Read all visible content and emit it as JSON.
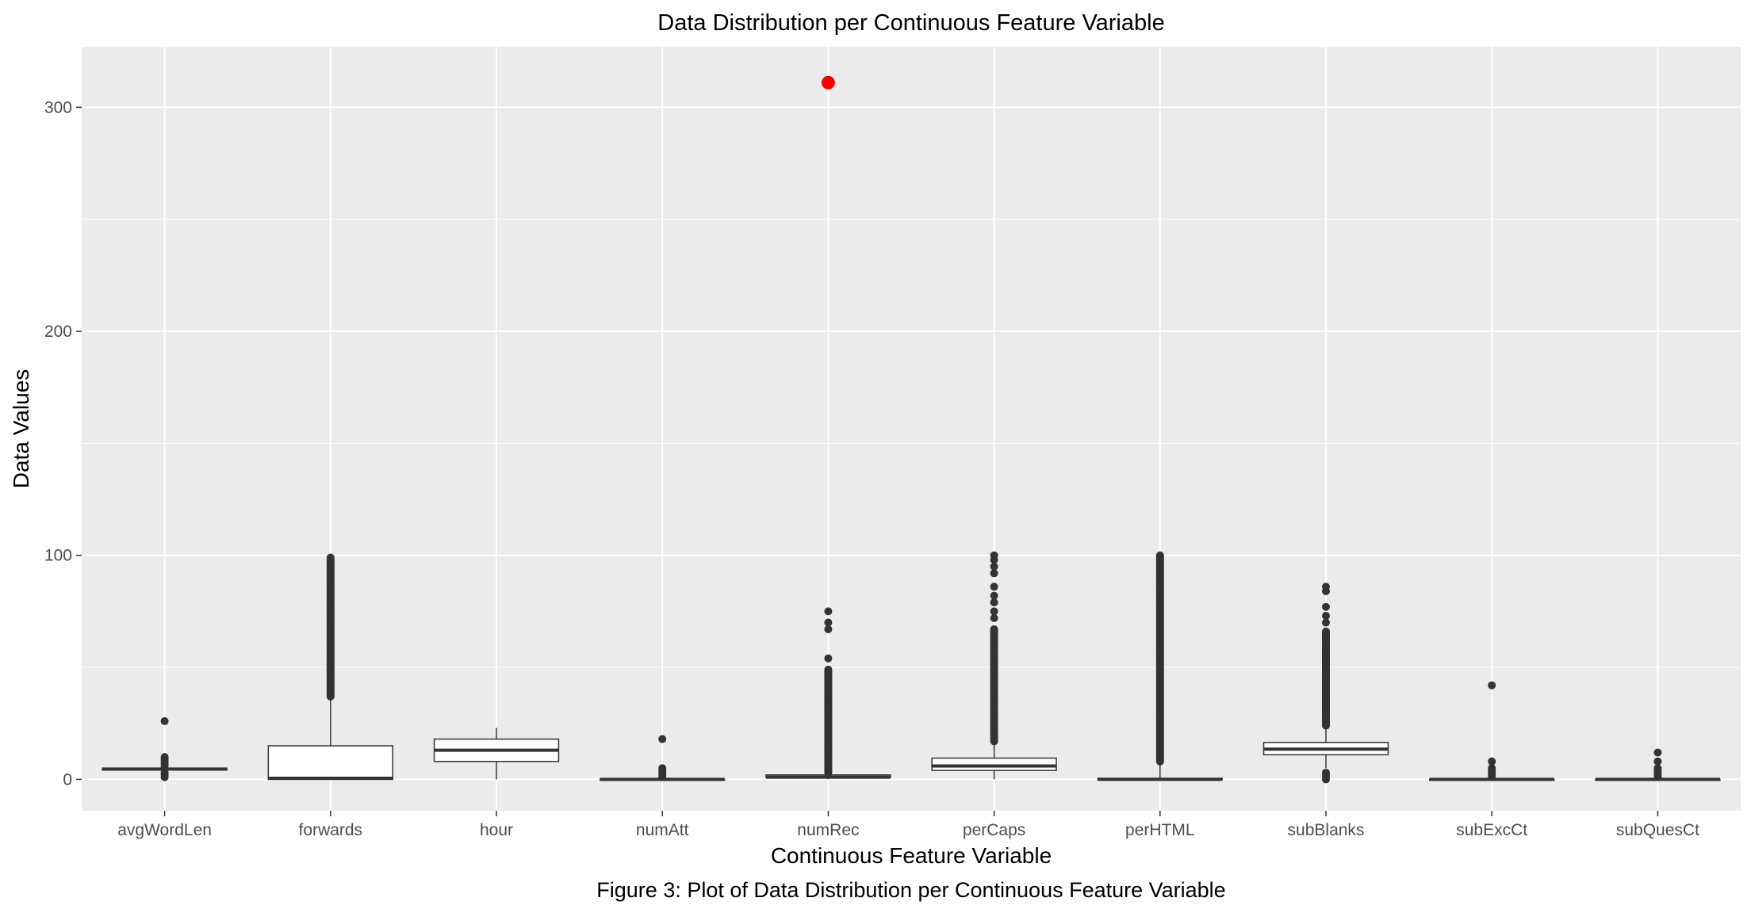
{
  "chart_data": {
    "type": "boxplot",
    "title": "Data Distribution per Continuous Feature Variable",
    "xlabel": "Continuous Feature Variable",
    "ylabel": "Data Values",
    "caption": "Figure 3: Plot of Data Distribution per Continuous Feature Variable",
    "ylim": [
      -14,
      327
    ],
    "yticks": [
      0,
      100,
      200,
      300
    ],
    "grid": true,
    "colors": {
      "panel": "#ebebeb",
      "grid_major": "#ffffff",
      "box_line": "#333333",
      "outlier": "#333333",
      "highlight": "#ff0000"
    },
    "categories": [
      "avgWordLen",
      "forwards",
      "hour",
      "numAtt",
      "numRec",
      "perCaps",
      "perHTML",
      "subBlanks",
      "subExcCt",
      "subQuesCt"
    ],
    "boxes": [
      {
        "name": "avgWordLen",
        "min": 4,
        "q1": 4.2,
        "median": 4.6,
        "q3": 5.0,
        "max": 5.6,
        "outliers": [
          1,
          2,
          3,
          6,
          7,
          8,
          9,
          10,
          26
        ]
      },
      {
        "name": "forwards",
        "min": 0,
        "q1": 0,
        "median": 0.5,
        "q3": 15,
        "max": 37,
        "outliers_range": [
          37,
          99
        ]
      },
      {
        "name": "hour",
        "min": 0,
        "q1": 8,
        "median": 13,
        "q3": 18,
        "max": 23,
        "outliers": []
      },
      {
        "name": "numAtt",
        "min": 0,
        "q1": 0,
        "median": 0,
        "q3": 0,
        "max": 0,
        "outliers": [
          1,
          2,
          3,
          4,
          5,
          18
        ]
      },
      {
        "name": "numRec",
        "min": 0,
        "q1": 1,
        "median": 1,
        "q3": 2,
        "max": 3,
        "outliers_range": [
          3,
          49
        ],
        "outliers": [
          54,
          67,
          70,
          75
        ],
        "highlight": 311
      },
      {
        "name": "perCaps",
        "min": 0,
        "q1": 4,
        "median": 6,
        "q3": 9.5,
        "max": 17,
        "outliers_range": [
          17,
          67
        ],
        "outliers": [
          72,
          75,
          79,
          82,
          86,
          92,
          95,
          98,
          100
        ]
      },
      {
        "name": "perHTML",
        "min": 0,
        "q1": 0,
        "median": 0,
        "q3": 0.5,
        "max": 8,
        "outliers_range": [
          8,
          100
        ]
      },
      {
        "name": "subBlanks",
        "min": 5,
        "q1": 11,
        "median": 13.5,
        "q3": 16.5,
        "max": 24,
        "outliers_range": [
          24,
          66
        ],
        "outliers": [
          0,
          1,
          2,
          3,
          70,
          73,
          77,
          84,
          86
        ]
      },
      {
        "name": "subExcCt",
        "min": 0,
        "q1": 0,
        "median": 0,
        "q3": 0,
        "max": 0,
        "outliers": [
          1,
          2,
          3,
          4,
          5,
          8,
          42
        ]
      },
      {
        "name": "subQuesCt",
        "min": 0,
        "q1": 0,
        "median": 0,
        "q3": 0,
        "max": 0,
        "outliers": [
          1,
          2,
          3,
          4,
          5,
          8,
          12
        ]
      }
    ]
  }
}
